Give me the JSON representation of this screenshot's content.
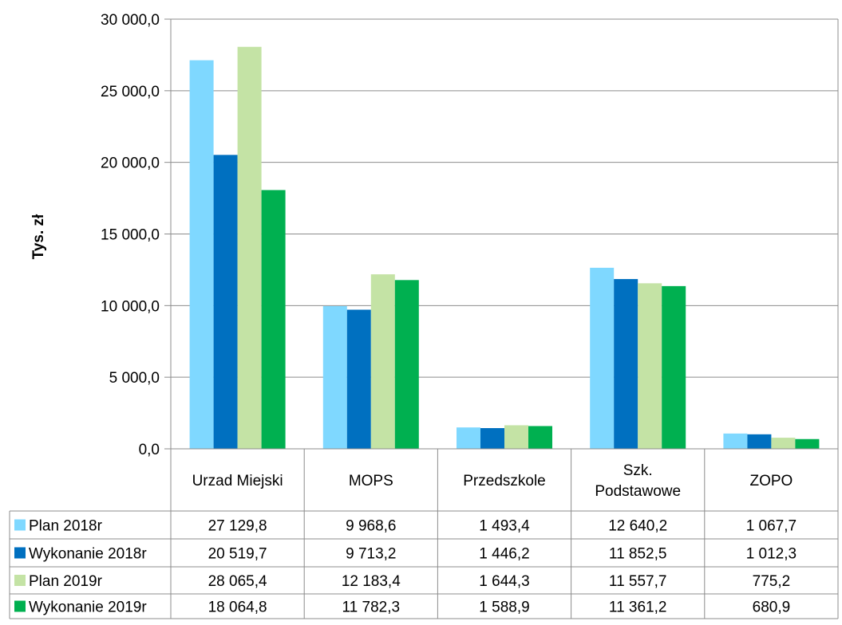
{
  "chart_data": {
    "type": "bar",
    "title": "",
    "xlabel": "",
    "ylabel": "Tys. zł",
    "ylim": [
      0,
      30000
    ],
    "yticks": [
      0,
      5000,
      10000,
      15000,
      20000,
      25000,
      30000
    ],
    "ytick_labels": [
      "0,0",
      "5 000,0",
      "10 000,0",
      "15 000,0",
      "20 000,0",
      "25 000,0",
      "30 000,0"
    ],
    "grid": true,
    "legend": "data-table-left",
    "categories": [
      "Urzad Miejski",
      "MOPS",
      "Przedszkole",
      "Szk. Podstawowe",
      "ZOPO"
    ],
    "series": [
      {
        "name": "Plan 2018r",
        "color": "#7fd8ff",
        "values": [
          27129.8,
          9968.6,
          1493.4,
          12640.2,
          1067.7
        ],
        "labels": [
          "27 129,8",
          "9 968,6",
          "1 493,4",
          "12 640,2",
          "1 067,7"
        ]
      },
      {
        "name": "Wykonanie 2018r",
        "color": "#0070c0",
        "values": [
          20519.7,
          9713.2,
          1446.2,
          11852.5,
          1012.3
        ],
        "labels": [
          "20 519,7",
          "9 713,2",
          "1 446,2",
          "11 852,5",
          "1 012,3"
        ]
      },
      {
        "name": "Plan 2019r",
        "color": "#c4e3a5",
        "values": [
          28065.4,
          12183.4,
          1644.3,
          11557.7,
          775.2
        ],
        "labels": [
          "28 065,4",
          "12 183,4",
          "1 644,3",
          "11 557,7",
          "775,2"
        ]
      },
      {
        "name": "Wykonanie 2019r",
        "color": "#00b050",
        "values": [
          18064.8,
          11782.3,
          1588.9,
          11361.2,
          680.9
        ],
        "labels": [
          "18 064,8",
          "11 782,3",
          "1 588,9",
          "11 361,2",
          "680,9"
        ]
      }
    ]
  }
}
